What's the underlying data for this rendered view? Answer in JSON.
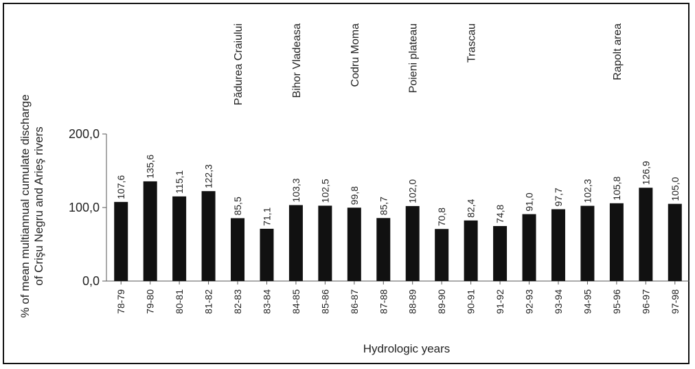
{
  "chart_data": {
    "type": "bar",
    "categories": [
      "78-79",
      "79-80",
      "80-81",
      "81-82",
      "82-83",
      "83-84",
      "84-85",
      "85-86",
      "86-87",
      "87-88",
      "88-89",
      "89-90",
      "90-91",
      "91-92",
      "92-93",
      "93-94",
      "94-95",
      "95-96",
      "96-97",
      "97-98"
    ],
    "values": [
      107.6,
      135.6,
      115.1,
      122.3,
      85.5,
      71.1,
      103.3,
      102.5,
      99.8,
      85.7,
      102.0,
      70.8,
      82.4,
      74.8,
      91.0,
      97.7,
      102.3,
      105.8,
      126.9,
      105.0
    ],
    "value_labels": [
      "107,6",
      "135,6",
      "115,1",
      "122,3",
      "85,5",
      "71,1",
      "103,3",
      "102,5",
      "99,8",
      "85,7",
      "102,0",
      "70,8",
      "82,4",
      "74,8",
      "91,0",
      "97,7",
      "102,3",
      "105,8",
      "126,9",
      "105,0"
    ],
    "yticks": [
      {
        "value": 0,
        "label": "0,0"
      },
      {
        "value": 100,
        "label": "100,0"
      },
      {
        "value": 200,
        "label": "200,0"
      }
    ],
    "ylim": [
      0,
      200
    ],
    "ylabel_lines": [
      "% of mean multiannual cumulate discharge",
      "of Crişu Negru and Arieş rivers"
    ],
    "xlabel": "Hydrologic years",
    "annotations": [
      {
        "category_index": 4,
        "text": "Pădurea Craiului"
      },
      {
        "category_index": 6,
        "text": "Bihor Vladeasa"
      },
      {
        "category_index": 8,
        "text": "Codru Moma"
      },
      {
        "category_index": 10,
        "text": "Poieni plateau"
      },
      {
        "category_index": 12,
        "text": "Trascau"
      },
      {
        "category_index": 17,
        "text": "Rapolt area"
      }
    ],
    "bar_color": "#111111",
    "grid": false
  }
}
